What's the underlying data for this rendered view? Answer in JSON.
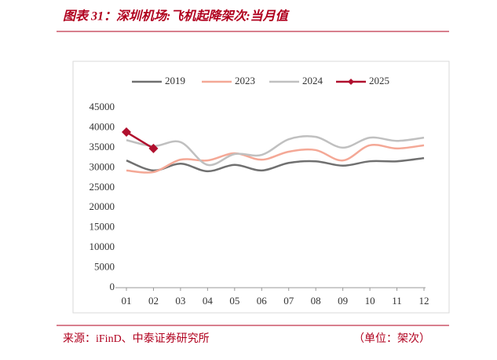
{
  "chart_data": {
    "type": "line",
    "title": "图表 31：深圳机场:飞机起降架次:当月值",
    "source": "来源：iFinD、中泰证券研究所",
    "unit": "（单位：架次）",
    "categories": [
      "01",
      "02",
      "03",
      "04",
      "05",
      "06",
      "07",
      "08",
      "09",
      "10",
      "11",
      "12"
    ],
    "series": [
      {
        "name": "2019",
        "color": "#707070",
        "values": [
          31800,
          29300,
          31000,
          29100,
          30700,
          29300,
          31200,
          31600,
          30500,
          31600,
          31600,
          32400
        ]
      },
      {
        "name": "2023",
        "color": "#f4a896",
        "values": [
          29300,
          28900,
          32000,
          31800,
          33600,
          32000,
          34000,
          34400,
          31800,
          35600,
          34800,
          35600
        ]
      },
      {
        "name": "2024",
        "color": "#c0c0c0",
        "values": [
          36900,
          35400,
          36400,
          30700,
          33400,
          33200,
          37100,
          37700,
          35000,
          37500,
          36700,
          37500
        ]
      },
      {
        "name": "2025",
        "color": "#b0102e",
        "marker": "diamond",
        "values": [
          38900,
          34800,
          null,
          null,
          null,
          null,
          null,
          null,
          null,
          null,
          null,
          null
        ]
      }
    ],
    "ylim": [
      0,
      45000
    ],
    "yticks": [
      0,
      5000,
      10000,
      15000,
      20000,
      25000,
      30000,
      35000,
      40000,
      45000
    ],
    "legend": "top"
  }
}
